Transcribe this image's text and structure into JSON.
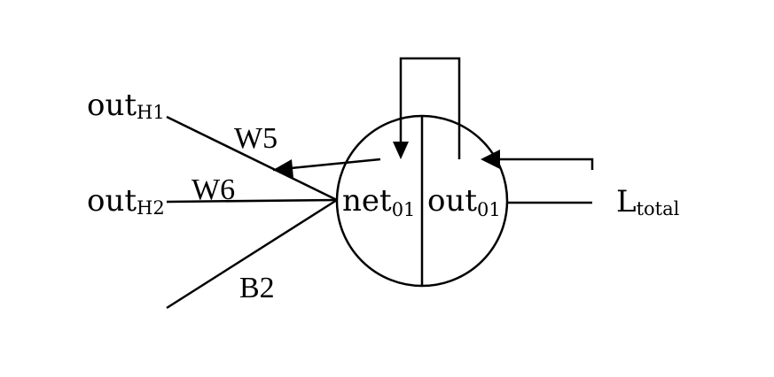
{
  "inputs": {
    "h1": {
      "main": "out",
      "sub": "H1"
    },
    "h2": {
      "main": "out",
      "sub": "H2"
    }
  },
  "weights": {
    "w5": "W5",
    "w6": "W6",
    "b2": "B2"
  },
  "neuron": {
    "net": {
      "main": "net",
      "sub": "01"
    },
    "out": {
      "main": "out",
      "sub": "01"
    }
  },
  "loss": {
    "main": "L",
    "sub": "total"
  },
  "colors": {
    "stroke": "#000000",
    "background": "#ffffff"
  }
}
